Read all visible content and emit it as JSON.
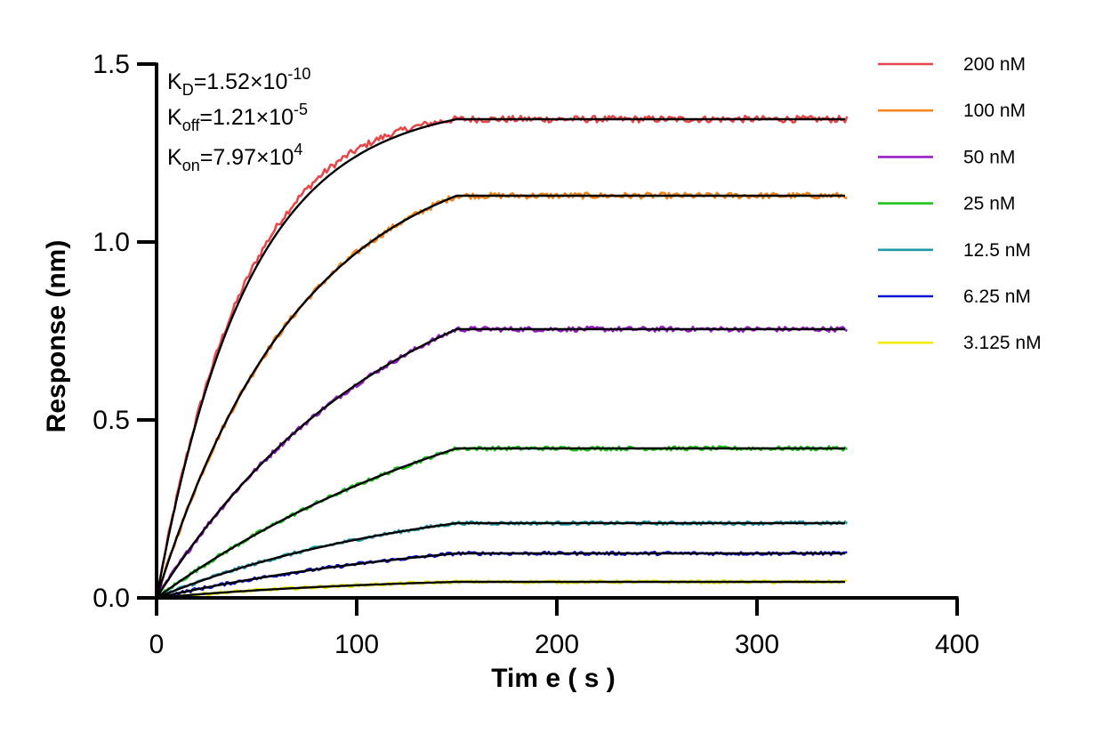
{
  "chart_data": {
    "type": "line",
    "xlabel": "Tim e ( s )",
    "ylabel": "Response (nm)",
    "xlim": [
      0,
      400
    ],
    "ylim": [
      0,
      1.5
    ],
    "xticks": [
      0,
      100,
      200,
      300,
      400
    ],
    "xtick_labels": [
      "0",
      "100",
      "200",
      "300",
      "400"
    ],
    "yticks": [
      0,
      0.5,
      1.0,
      1.5
    ],
    "ytick_labels": [
      "0.0",
      "0.5",
      "1.0",
      "1.5"
    ],
    "grid": false,
    "legend_position": "right",
    "association_end": 150,
    "end_time": 345,
    "fit_color": "#000000",
    "annotations": {
      "kd": {
        "base": "K",
        "sub": "D",
        "text": "=1.52×10",
        "sup": "-10"
      },
      "koff": {
        "base": "K",
        "sub": "off",
        "text": "=1.21×10",
        "sup": "-5"
      },
      "kon": {
        "base": "K",
        "sub": "on",
        "text": "=7.97×10",
        "sup": "4"
      }
    },
    "series": [
      {
        "name": "200 nM",
        "color": "#e8474a",
        "plateau": 1.345,
        "rate": 0.022
      },
      {
        "name": "100 nM",
        "color": "#f5861f",
        "plateau": 1.13,
        "rate": 0.014
      },
      {
        "name": "50 nM",
        "color": "#9b1fc9",
        "plateau": 0.755,
        "rate": 0.0085
      },
      {
        "name": "25 nM",
        "color": "#1ec41a",
        "plateau": 0.42,
        "rate": 0.0055
      },
      {
        "name": "12.5 nM",
        "color": "#1c9aa8",
        "plateau": 0.21,
        "rate": 0.0075
      },
      {
        "name": "6.25 nM",
        "color": "#0a12d6",
        "plateau": 0.125,
        "rate": 0.006
      },
      {
        "name": "3.125 nM",
        "color": "#f2ea00",
        "plateau": 0.045,
        "rate": 0.008
      }
    ]
  }
}
